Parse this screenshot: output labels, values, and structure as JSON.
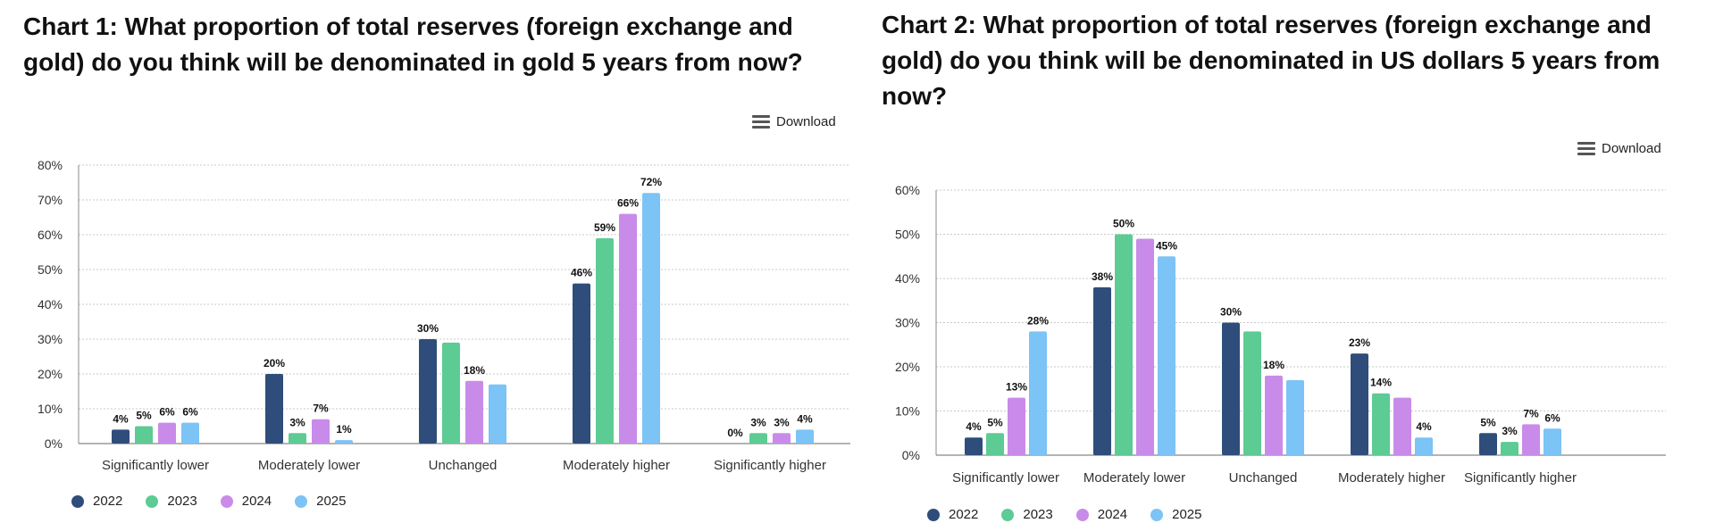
{
  "colors": {
    "2022": "#2e4d7b",
    "2023": "#5dcb94",
    "2024": "#c98be9",
    "2025": "#7cc3f6",
    "grid": "#c8c8c8",
    "axis": "#888888"
  },
  "download_label": "Download",
  "menu_icon": "hamburger-menu-icon",
  "chart_data": [
    {
      "type": "bar",
      "title": "Chart 1: What proportion of total reserves (foreign exchange and gold) do you think will be denominated in gold 5 years from now?",
      "categories": [
        "Significantly lower",
        "Moderately lower",
        "Unchanged",
        "Moderately higher",
        "Significantly higher"
      ],
      "series": [
        {
          "name": "2022",
          "values": [
            4,
            20,
            30,
            46,
            0
          ]
        },
        {
          "name": "2023",
          "values": [
            5,
            3,
            29,
            59,
            3
          ]
        },
        {
          "name": "2024",
          "values": [
            6,
            7,
            18,
            66,
            3
          ]
        },
        {
          "name": "2025",
          "values": [
            6,
            1,
            17,
            72,
            4
          ]
        }
      ],
      "data_labels": [
        [
          "4%",
          "20%",
          "30%",
          "46%",
          "0%"
        ],
        [
          "5%",
          "3%",
          "",
          "59%",
          "3%"
        ],
        [
          "6%",
          "7%",
          "18%",
          "66%",
          "3%"
        ],
        [
          "6%",
          "1%",
          "",
          "72%",
          "4%"
        ]
      ],
      "yticks": [
        "0%",
        "10%",
        "20%",
        "30%",
        "40%",
        "50%",
        "60%",
        "70%",
        "80%"
      ],
      "ylim": [
        0,
        80
      ],
      "grid": true,
      "legend": "bottom-left"
    },
    {
      "type": "bar",
      "title": "Chart 2: What proportion of total reserves (foreign exchange and gold) do you think will be denominated in US dollars 5 years from now?",
      "categories": [
        "Significantly lower",
        "Moderately lower",
        "Unchanged",
        "Moderately higher",
        "Significantly higher"
      ],
      "series": [
        {
          "name": "2022",
          "values": [
            4,
            38,
            30,
            23,
            5
          ]
        },
        {
          "name": "2023",
          "values": [
            5,
            50,
            28,
            14,
            3
          ]
        },
        {
          "name": "2024",
          "values": [
            13,
            49,
            18,
            13,
            7
          ]
        },
        {
          "name": "2025",
          "values": [
            28,
            45,
            17,
            4,
            6
          ]
        }
      ],
      "data_labels": [
        [
          "4%",
          "38%",
          "30%",
          "23%",
          "5%"
        ],
        [
          "5%",
          "50%",
          "",
          "14%",
          "3%"
        ],
        [
          "13%",
          "",
          "18%",
          "",
          "7%"
        ],
        [
          "28%",
          "45%",
          "",
          "4%",
          "6%"
        ]
      ],
      "yticks": [
        "0%",
        "10%",
        "20%",
        "30%",
        "40%",
        "50%",
        "60%"
      ],
      "ylim": [
        0,
        60
      ],
      "grid": true,
      "legend": "bottom-left"
    }
  ]
}
